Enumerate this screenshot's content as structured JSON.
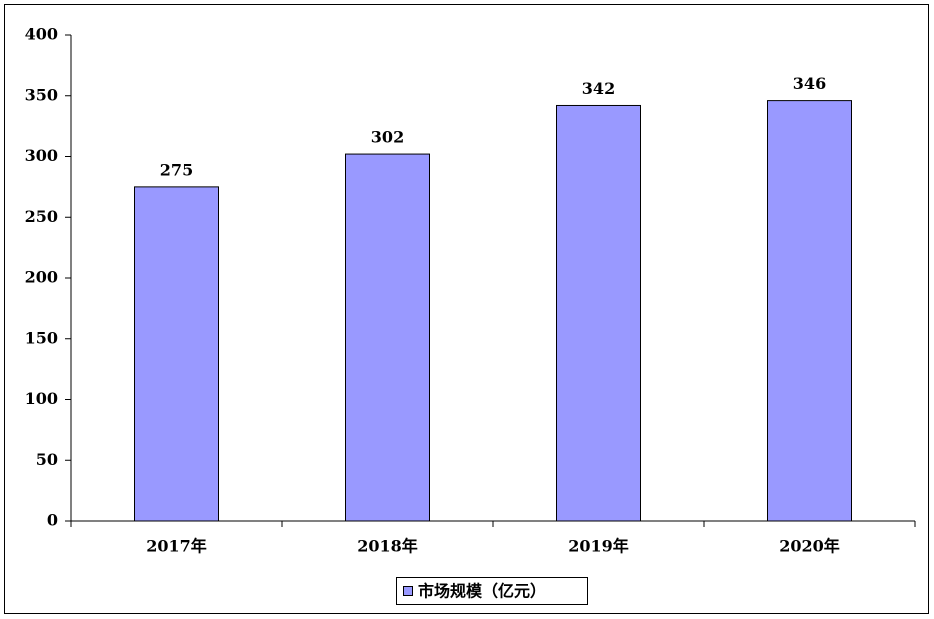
{
  "chart_data": {
    "type": "bar",
    "categories": [
      "2017年",
      "2018年",
      "2019年",
      "2020年"
    ],
    "series": [
      {
        "name": "市场规模（亿元）",
        "color": "#9999ff",
        "values": [
          275,
          302,
          342,
          346
        ]
      }
    ],
    "ylim": [
      0,
      400
    ],
    "yticks": [
      0,
      50,
      100,
      150,
      200,
      250,
      300,
      350,
      400
    ],
    "grid": false,
    "legend": "bottom",
    "data_labels": true
  }
}
